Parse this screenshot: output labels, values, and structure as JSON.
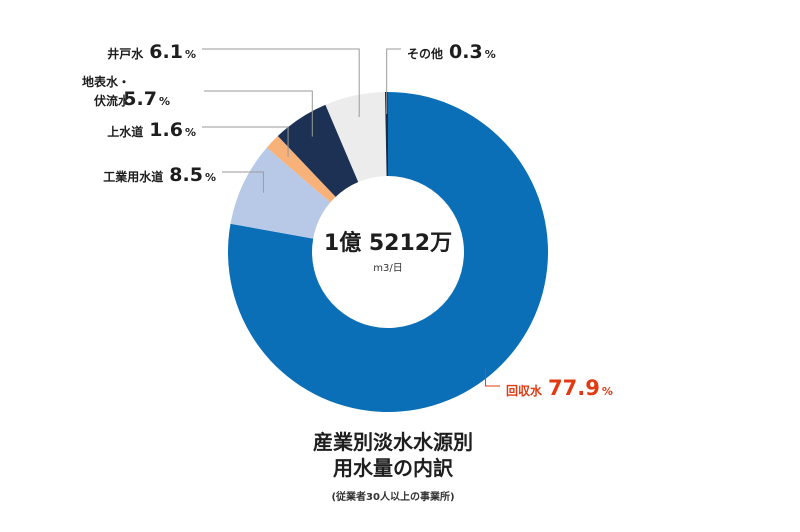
{
  "chart_data": {
    "type": "pie",
    "title": [
      "産業別淡水水源別",
      "用水量の内訳"
    ],
    "subtitle": "(従業者30人以上の事業所)",
    "center_value": "1億 5212万",
    "center_unit": "m3/日",
    "unit_suffix": "%",
    "slices": [
      {
        "label": [
          "回収水"
        ],
        "value": 77.9,
        "color": "#0a6fb6",
        "highlight": true
      },
      {
        "label": [
          "工業用水道"
        ],
        "value": 8.5,
        "color": "#b8c9e8"
      },
      {
        "label": [
          "上水道"
        ],
        "value": 1.6,
        "color": "#f7b179"
      },
      {
        "label": [
          "地表水・",
          "伏流水"
        ],
        "value": 5.7,
        "color": "#1c3154"
      },
      {
        "label": [
          "井戸水"
        ],
        "value": 6.1,
        "color": "#ececec"
      },
      {
        "label": [
          "その他"
        ],
        "value": 0.3,
        "color": "#1c2a44"
      }
    ],
    "highlight_color": "#e03a12"
  }
}
